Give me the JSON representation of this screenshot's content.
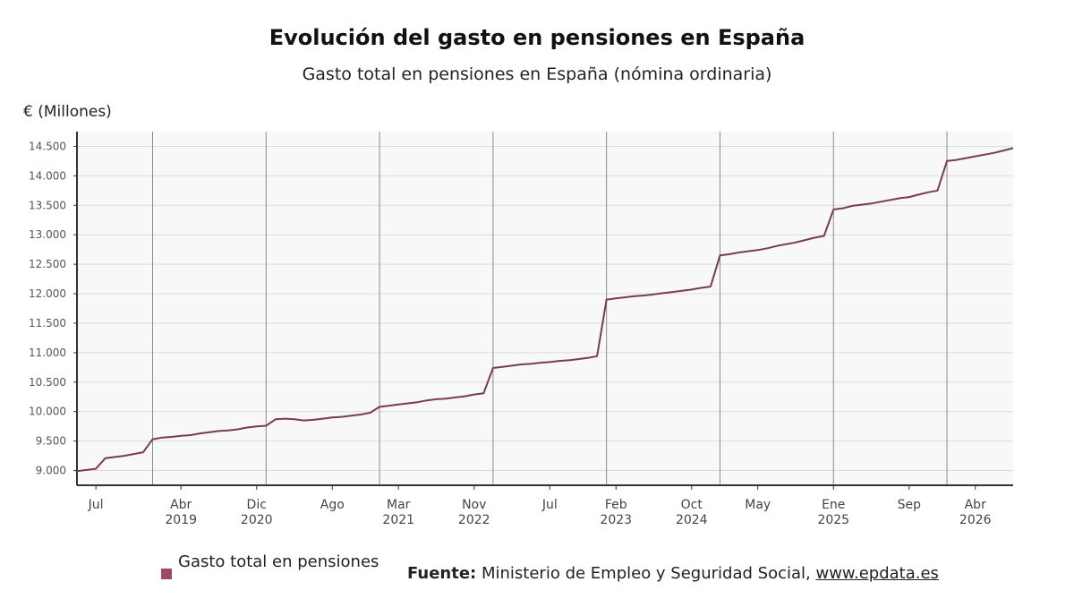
{
  "chart_data": {
    "type": "line",
    "title": "Evolución del gasto en pensiones en España",
    "subtitle": "Gasto total en pensiones en España (nómina ordinaria)",
    "ylabel": "€ (Millones)",
    "xlabel": "",
    "ylim": [
      8750,
      14750
    ],
    "yticks": [
      9000,
      9500,
      10000,
      10500,
      11000,
      11500,
      12000,
      12500,
      13000,
      13500,
      14000,
      14500
    ],
    "ytick_labels": [
      "9.000",
      "9.500",
      "10.000",
      "10.500",
      "11.000",
      "11.500",
      "12.000",
      "12.500",
      "13.000",
      "13.500",
      "14.000",
      "14.500"
    ],
    "xlim": [
      "2018-05",
      "2026-08"
    ],
    "grid": true,
    "year_lines": [
      "2019-01",
      "2020-01",
      "2021-01",
      "2022-01",
      "2023-01",
      "2024-01",
      "2025-01",
      "2026-01"
    ],
    "xticks": [
      {
        "date": "2018-07",
        "label": "Jul",
        "year": ""
      },
      {
        "date": "2019-04",
        "label": "Abr",
        "year": "2019"
      },
      {
        "date": "2019-12",
        "label": "Dic",
        "year": "2020"
      },
      {
        "date": "2020-08",
        "label": "Ago",
        "year": ""
      },
      {
        "date": "2021-03",
        "label": "Mar",
        "year": "2021"
      },
      {
        "date": "2021-11",
        "label": "Nov",
        "year": "2022"
      },
      {
        "date": "2022-07",
        "label": "Jul",
        "year": ""
      },
      {
        "date": "2023-02",
        "label": "Feb",
        "year": "2023"
      },
      {
        "date": "2023-10",
        "label": "Oct",
        "year": "2024"
      },
      {
        "date": "2024-05",
        "label": "May",
        "year": ""
      },
      {
        "date": "2025-01",
        "label": "Ene",
        "year": "2025"
      },
      {
        "date": "2025-09",
        "label": "Sep",
        "year": ""
      },
      {
        "date": "2026-04",
        "label": "Abr",
        "year": "2026"
      }
    ],
    "series": [
      {
        "name": "Gasto total en pensiones",
        "color": "#7a3b50",
        "points": [
          [
            "2018-05",
            8990
          ],
          [
            "2018-06",
            9010
          ],
          [
            "2018-07",
            9030
          ],
          [
            "2018-08",
            9210
          ],
          [
            "2018-09",
            9230
          ],
          [
            "2018-10",
            9250
          ],
          [
            "2018-11",
            9280
          ],
          [
            "2018-12",
            9310
          ],
          [
            "2019-01",
            9530
          ],
          [
            "2019-02",
            9560
          ],
          [
            "2019-03",
            9570
          ],
          [
            "2019-04",
            9590
          ],
          [
            "2019-05",
            9600
          ],
          [
            "2019-06",
            9630
          ],
          [
            "2019-07",
            9650
          ],
          [
            "2019-08",
            9670
          ],
          [
            "2019-09",
            9680
          ],
          [
            "2019-10",
            9700
          ],
          [
            "2019-11",
            9730
          ],
          [
            "2019-12",
            9750
          ],
          [
            "2020-01",
            9760
          ],
          [
            "2020-02",
            9870
          ],
          [
            "2020-03",
            9880
          ],
          [
            "2020-04",
            9870
          ],
          [
            "2020-05",
            9850
          ],
          [
            "2020-06",
            9860
          ],
          [
            "2020-07",
            9880
          ],
          [
            "2020-08",
            9900
          ],
          [
            "2020-09",
            9910
          ],
          [
            "2020-10",
            9930
          ],
          [
            "2020-11",
            9950
          ],
          [
            "2020-12",
            9980
          ],
          [
            "2021-01",
            10080
          ],
          [
            "2021-02",
            10100
          ],
          [
            "2021-03",
            10120
          ],
          [
            "2021-04",
            10140
          ],
          [
            "2021-05",
            10160
          ],
          [
            "2021-06",
            10190
          ],
          [
            "2021-07",
            10210
          ],
          [
            "2021-08",
            10220
          ],
          [
            "2021-09",
            10240
          ],
          [
            "2021-10",
            10260
          ],
          [
            "2021-11",
            10290
          ],
          [
            "2021-12",
            10310
          ],
          [
            "2022-01",
            10740
          ],
          [
            "2022-02",
            10760
          ],
          [
            "2022-03",
            10780
          ],
          [
            "2022-04",
            10800
          ],
          [
            "2022-05",
            10810
          ],
          [
            "2022-06",
            10830
          ],
          [
            "2022-07",
            10840
          ],
          [
            "2022-08",
            10860
          ],
          [
            "2022-09",
            10870
          ],
          [
            "2022-10",
            10890
          ],
          [
            "2022-11",
            10910
          ],
          [
            "2022-12",
            10940
          ],
          [
            "2023-01",
            11900
          ],
          [
            "2023-02",
            11920
          ],
          [
            "2023-03",
            11940
          ],
          [
            "2023-04",
            11960
          ],
          [
            "2023-05",
            11970
          ],
          [
            "2023-06",
            11990
          ],
          [
            "2023-07",
            12010
          ],
          [
            "2023-08",
            12030
          ],
          [
            "2023-09",
            12050
          ],
          [
            "2023-10",
            12070
          ],
          [
            "2023-11",
            12100
          ],
          [
            "2023-12",
            12120
          ],
          [
            "2024-01",
            12650
          ],
          [
            "2024-02",
            12670
          ],
          [
            "2024-03",
            12700
          ],
          [
            "2024-04",
            12720
          ],
          [
            "2024-05",
            12740
          ],
          [
            "2024-06",
            12770
          ],
          [
            "2024-07",
            12810
          ],
          [
            "2024-08",
            12840
          ],
          [
            "2024-09",
            12870
          ],
          [
            "2024-10",
            12910
          ],
          [
            "2024-11",
            12950
          ],
          [
            "2024-12",
            12980
          ],
          [
            "2025-01",
            13430
          ],
          [
            "2025-02",
            13450
          ],
          [
            "2025-03",
            13490
          ],
          [
            "2025-04",
            13510
          ],
          [
            "2025-05",
            13530
          ],
          [
            "2025-06",
            13560
          ],
          [
            "2025-07",
            13590
          ],
          [
            "2025-08",
            13620
          ],
          [
            "2025-09",
            13640
          ],
          [
            "2025-10",
            13680
          ],
          [
            "2025-11",
            13720
          ],
          [
            "2025-12",
            13750
          ],
          [
            "2026-01",
            14250
          ],
          [
            "2026-02",
            14270
          ],
          [
            "2026-03",
            14300
          ],
          [
            "2026-04",
            14330
          ],
          [
            "2026-05",
            14360
          ],
          [
            "2026-06",
            14390
          ],
          [
            "2026-07",
            14430
          ],
          [
            "2026-08",
            14470
          ]
        ]
      }
    ]
  },
  "legend": {
    "label": "Gasto total en pensiones",
    "color": "#9b4a62"
  },
  "source": {
    "prefix": "Fuente:",
    "text": "Ministerio de Empleo y Seguridad Social,",
    "link": "www.epdata.es"
  }
}
